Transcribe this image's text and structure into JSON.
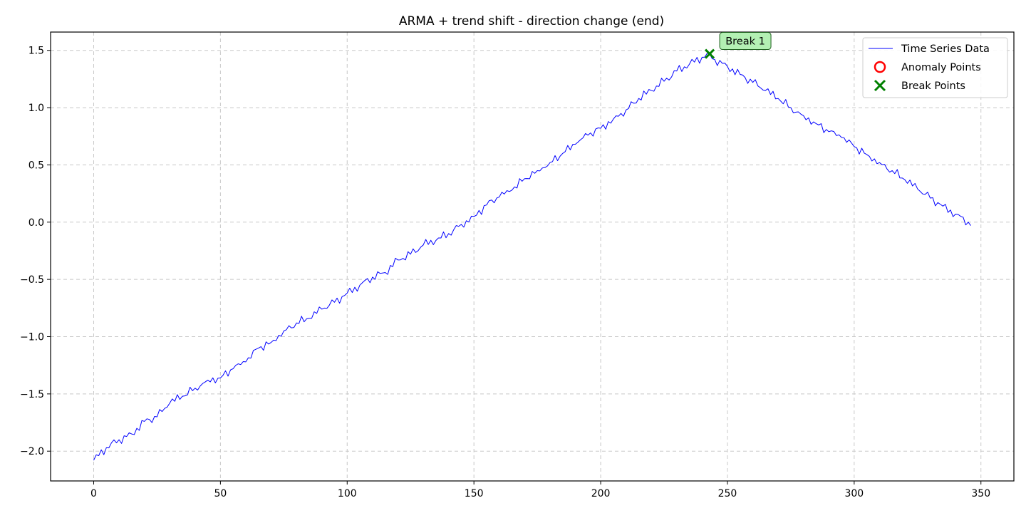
{
  "chart_data": {
    "type": "line",
    "title": "ARMA + trend shift - direction change (end)",
    "xlabel": "",
    "ylabel": "",
    "xlim": [
      -17,
      363
    ],
    "ylim": [
      -2.26,
      1.66
    ],
    "xticks": [
      0,
      50,
      100,
      150,
      200,
      250,
      300,
      350
    ],
    "xtick_labels": [
      "0",
      "50",
      "100",
      "150",
      "200",
      "250",
      "300",
      "350"
    ],
    "yticks": [
      -2.0,
      -1.5,
      -1.0,
      -0.5,
      0.0,
      0.5,
      1.0,
      1.5
    ],
    "ytick_labels": [
      "−2.0",
      "−1.5",
      "−1.0",
      "−0.5",
      "0.0",
      "0.5",
      "1.0",
      "1.5"
    ],
    "grid": true,
    "legend_position": "top-right",
    "series": [
      {
        "name": "Time Series Data",
        "kind": "line",
        "color": "#0000ff",
        "x": [
          0,
          5,
          10,
          15,
          20,
          25,
          30,
          35,
          40,
          45,
          50,
          55,
          60,
          65,
          70,
          75,
          80,
          85,
          90,
          95,
          100,
          105,
          110,
          115,
          120,
          125,
          130,
          135,
          140,
          145,
          150,
          155,
          160,
          165,
          170,
          175,
          180,
          185,
          190,
          195,
          200,
          205,
          210,
          215,
          220,
          225,
          230,
          235,
          240,
          243,
          245,
          250,
          255,
          260,
          265,
          270,
          275,
          280,
          285,
          290,
          295,
          300,
          305,
          310,
          315,
          320,
          325,
          330,
          335,
          340,
          345,
          346
        ],
        "y": [
          -2.08,
          -1.97,
          -1.9,
          -1.85,
          -1.74,
          -1.7,
          -1.58,
          -1.52,
          -1.45,
          -1.38,
          -1.36,
          -1.28,
          -1.22,
          -1.1,
          -1.05,
          -0.95,
          -0.88,
          -0.84,
          -0.76,
          -0.7,
          -0.62,
          -0.55,
          -0.48,
          -0.44,
          -0.33,
          -0.28,
          -0.2,
          -0.16,
          -0.1,
          -0.02,
          0.05,
          0.15,
          0.22,
          0.28,
          0.38,
          0.45,
          0.52,
          0.6,
          0.68,
          0.76,
          0.82,
          0.9,
          0.98,
          1.08,
          1.15,
          1.23,
          1.32,
          1.38,
          1.44,
          1.47,
          1.42,
          1.36,
          1.29,
          1.22,
          1.15,
          1.08,
          1.0,
          0.93,
          0.86,
          0.79,
          0.74,
          0.66,
          0.59,
          0.52,
          0.45,
          0.37,
          0.29,
          0.21,
          0.14,
          0.07,
          0.0,
          -0.03
        ]
      },
      {
        "name": "Anomaly Points",
        "kind": "marker-circle",
        "color": "#ff0000",
        "x": [],
        "y": []
      },
      {
        "name": "Break Points",
        "kind": "marker-x",
        "color": "#008000",
        "x": [
          243
        ],
        "y": [
          1.47
        ]
      }
    ],
    "annotations": [
      {
        "text": "Break 1",
        "x": 243,
        "y": 1.47,
        "box_color": "#b3f0b3",
        "border_color": "#1f5f1f"
      }
    ]
  }
}
